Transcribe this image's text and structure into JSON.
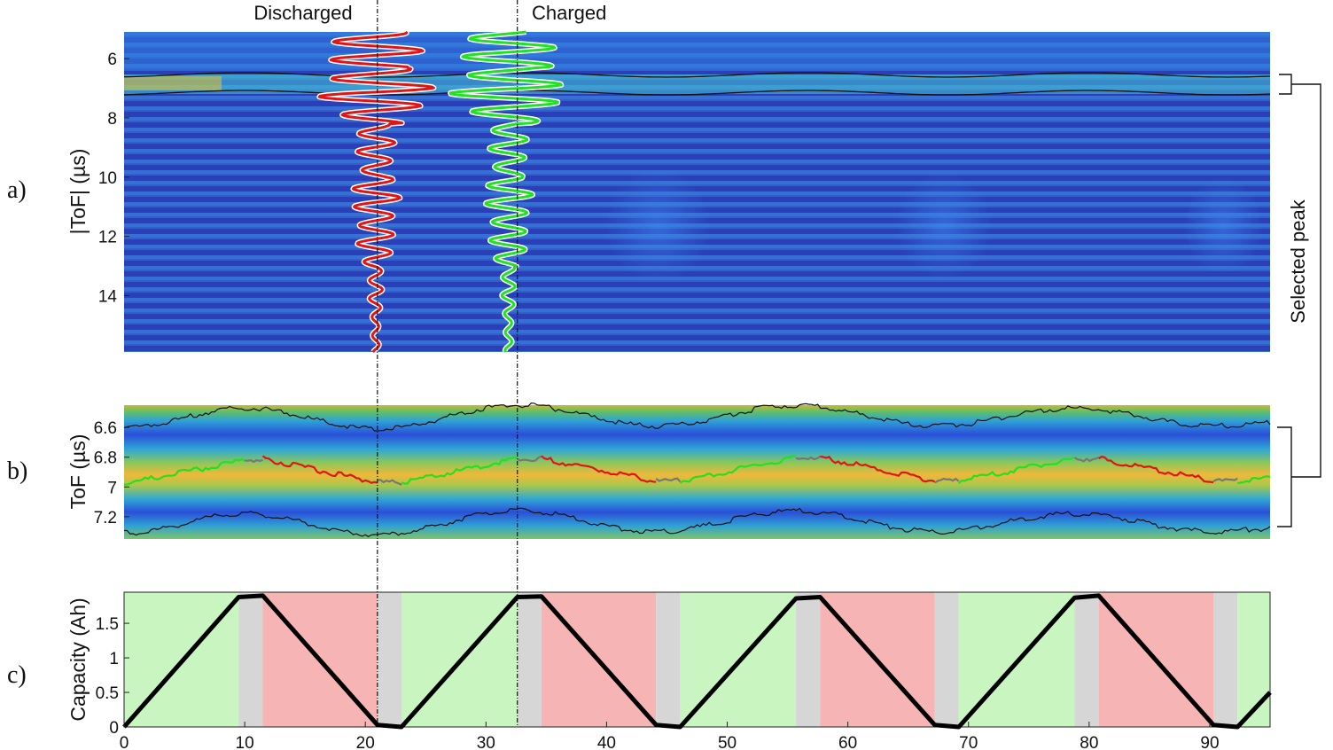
{
  "annotations": {
    "discharged": "Discharged",
    "charged": "Charged",
    "selected_peak": "Selected peak"
  },
  "panel_labels": [
    "a)",
    "b)",
    "c)"
  ],
  "colors": {
    "charge_segment": "#22e022",
    "discharge_segment": "#e01515",
    "rest_segment": "#777777",
    "charge_band": "#c8f5c0",
    "discharge_band": "#f7b4b4",
    "rest_band": "#d6d6d6",
    "capacity_line": "#000000"
  },
  "chart_data": [
    {
      "id": "a",
      "type": "heatmap",
      "title": "",
      "ylabel": "|ToF| (µs)",
      "xlabel": "",
      "ylim": [
        5.1,
        15.9
      ],
      "yticks": [
        6,
        8,
        10,
        12,
        14
      ],
      "xlim": [
        0,
        95
      ],
      "colormap": "parula",
      "selected_peak_band_us": [
        6.55,
        7.15
      ],
      "waveform_markers": [
        {
          "label": "Discharged",
          "time_h": 21.0,
          "color": "#e01515"
        },
        {
          "label": "Charged",
          "time_h": 32.6,
          "color": "#22e022"
        }
      ]
    },
    {
      "id": "b",
      "type": "heatmap",
      "ylabel": "ToF (µs)",
      "ylim": [
        7.35,
        6.45
      ],
      "yticks": [
        6.6,
        6.8,
        7.0,
        7.2
      ],
      "ytick_labels": [
        "6.6",
        "6.8",
        "7",
        "7.2"
      ],
      "xlim": [
        0,
        95
      ],
      "peak_track": {
        "times_h": [
          0,
          10,
          11.5,
          21,
          23,
          32.6,
          34.6,
          44.1,
          46.1,
          55.7,
          57.7,
          67.2,
          69.2,
          78.8,
          80.8,
          90.3,
          92.3,
          95
        ],
        "tof_us": [
          6.98,
          6.82,
          6.81,
          6.97,
          6.97,
          6.81,
          6.81,
          6.96,
          6.96,
          6.8,
          6.8,
          6.96,
          6.96,
          6.81,
          6.81,
          6.96,
          6.96,
          6.94
        ],
        "segment_state": [
          "charge",
          "rest",
          "discharge",
          "rest",
          "charge",
          "rest",
          "discharge",
          "rest",
          "charge",
          "rest",
          "discharge",
          "rest",
          "charge",
          "rest",
          "discharge",
          "rest",
          "charge"
        ]
      },
      "upper_envelope_us": {
        "times_h": [
          0,
          10,
          21,
          32.6,
          44.1,
          55.7,
          67.2,
          78.8,
          90.3,
          95
        ],
        "tof_us": [
          6.6,
          6.47,
          6.61,
          6.45,
          6.59,
          6.45,
          6.59,
          6.47,
          6.59,
          6.57
        ]
      },
      "lower_envelope_us": {
        "times_h": [
          0,
          10,
          21,
          32.6,
          44.1,
          55.7,
          67.2,
          78.8,
          90.3,
          95
        ],
        "tof_us": [
          7.31,
          7.18,
          7.32,
          7.16,
          7.3,
          7.16,
          7.3,
          7.18,
          7.3,
          7.28
        ]
      }
    },
    {
      "id": "c",
      "type": "line",
      "xlabel": "",
      "ylabel": "Capacity (Ah)",
      "xlim": [
        0,
        95
      ],
      "ylim": [
        0,
        1.95
      ],
      "xticks": [
        0,
        10,
        20,
        30,
        40,
        50,
        60,
        70,
        80,
        90
      ],
      "yticks": [
        0,
        0.5,
        1,
        1.5
      ],
      "ytick_labels": [
        "0",
        "0.5",
        "1",
        "1.5"
      ],
      "series": [
        {
          "x": [
            0,
            9.5,
            11.5,
            21,
            23,
            32.6,
            34.6,
            44.1,
            46.1,
            55.7,
            57.7,
            67.2,
            69.2,
            78.8,
            80.8,
            90.3,
            92.3,
            95
          ],
          "y": [
            0,
            1.88,
            1.9,
            0.03,
            0.0,
            1.88,
            1.89,
            0.03,
            0.0,
            1.86,
            1.88,
            0.03,
            0.0,
            1.87,
            1.9,
            0.03,
            0.0,
            0.5
          ]
        }
      ],
      "phases": [
        {
          "state": "charge",
          "start": 0,
          "end": 9.5
        },
        {
          "state": "rest",
          "start": 9.5,
          "end": 11.5
        },
        {
          "state": "discharge",
          "start": 11.5,
          "end": 21
        },
        {
          "state": "rest",
          "start": 21,
          "end": 23
        },
        {
          "state": "charge",
          "start": 23,
          "end": 32.6
        },
        {
          "state": "rest",
          "start": 32.6,
          "end": 34.6
        },
        {
          "state": "discharge",
          "start": 34.6,
          "end": 44.1
        },
        {
          "state": "rest",
          "start": 44.1,
          "end": 46.1
        },
        {
          "state": "charge",
          "start": 46.1,
          "end": 55.7
        },
        {
          "state": "rest",
          "start": 55.7,
          "end": 57.7
        },
        {
          "state": "discharge",
          "start": 57.7,
          "end": 67.2
        },
        {
          "state": "rest",
          "start": 67.2,
          "end": 69.2
        },
        {
          "state": "charge",
          "start": 69.2,
          "end": 78.8
        },
        {
          "state": "rest",
          "start": 78.8,
          "end": 80.8
        },
        {
          "state": "discharge",
          "start": 80.8,
          "end": 90.3
        },
        {
          "state": "rest",
          "start": 90.3,
          "end": 92.3
        },
        {
          "state": "charge",
          "start": 92.3,
          "end": 95
        }
      ]
    }
  ]
}
